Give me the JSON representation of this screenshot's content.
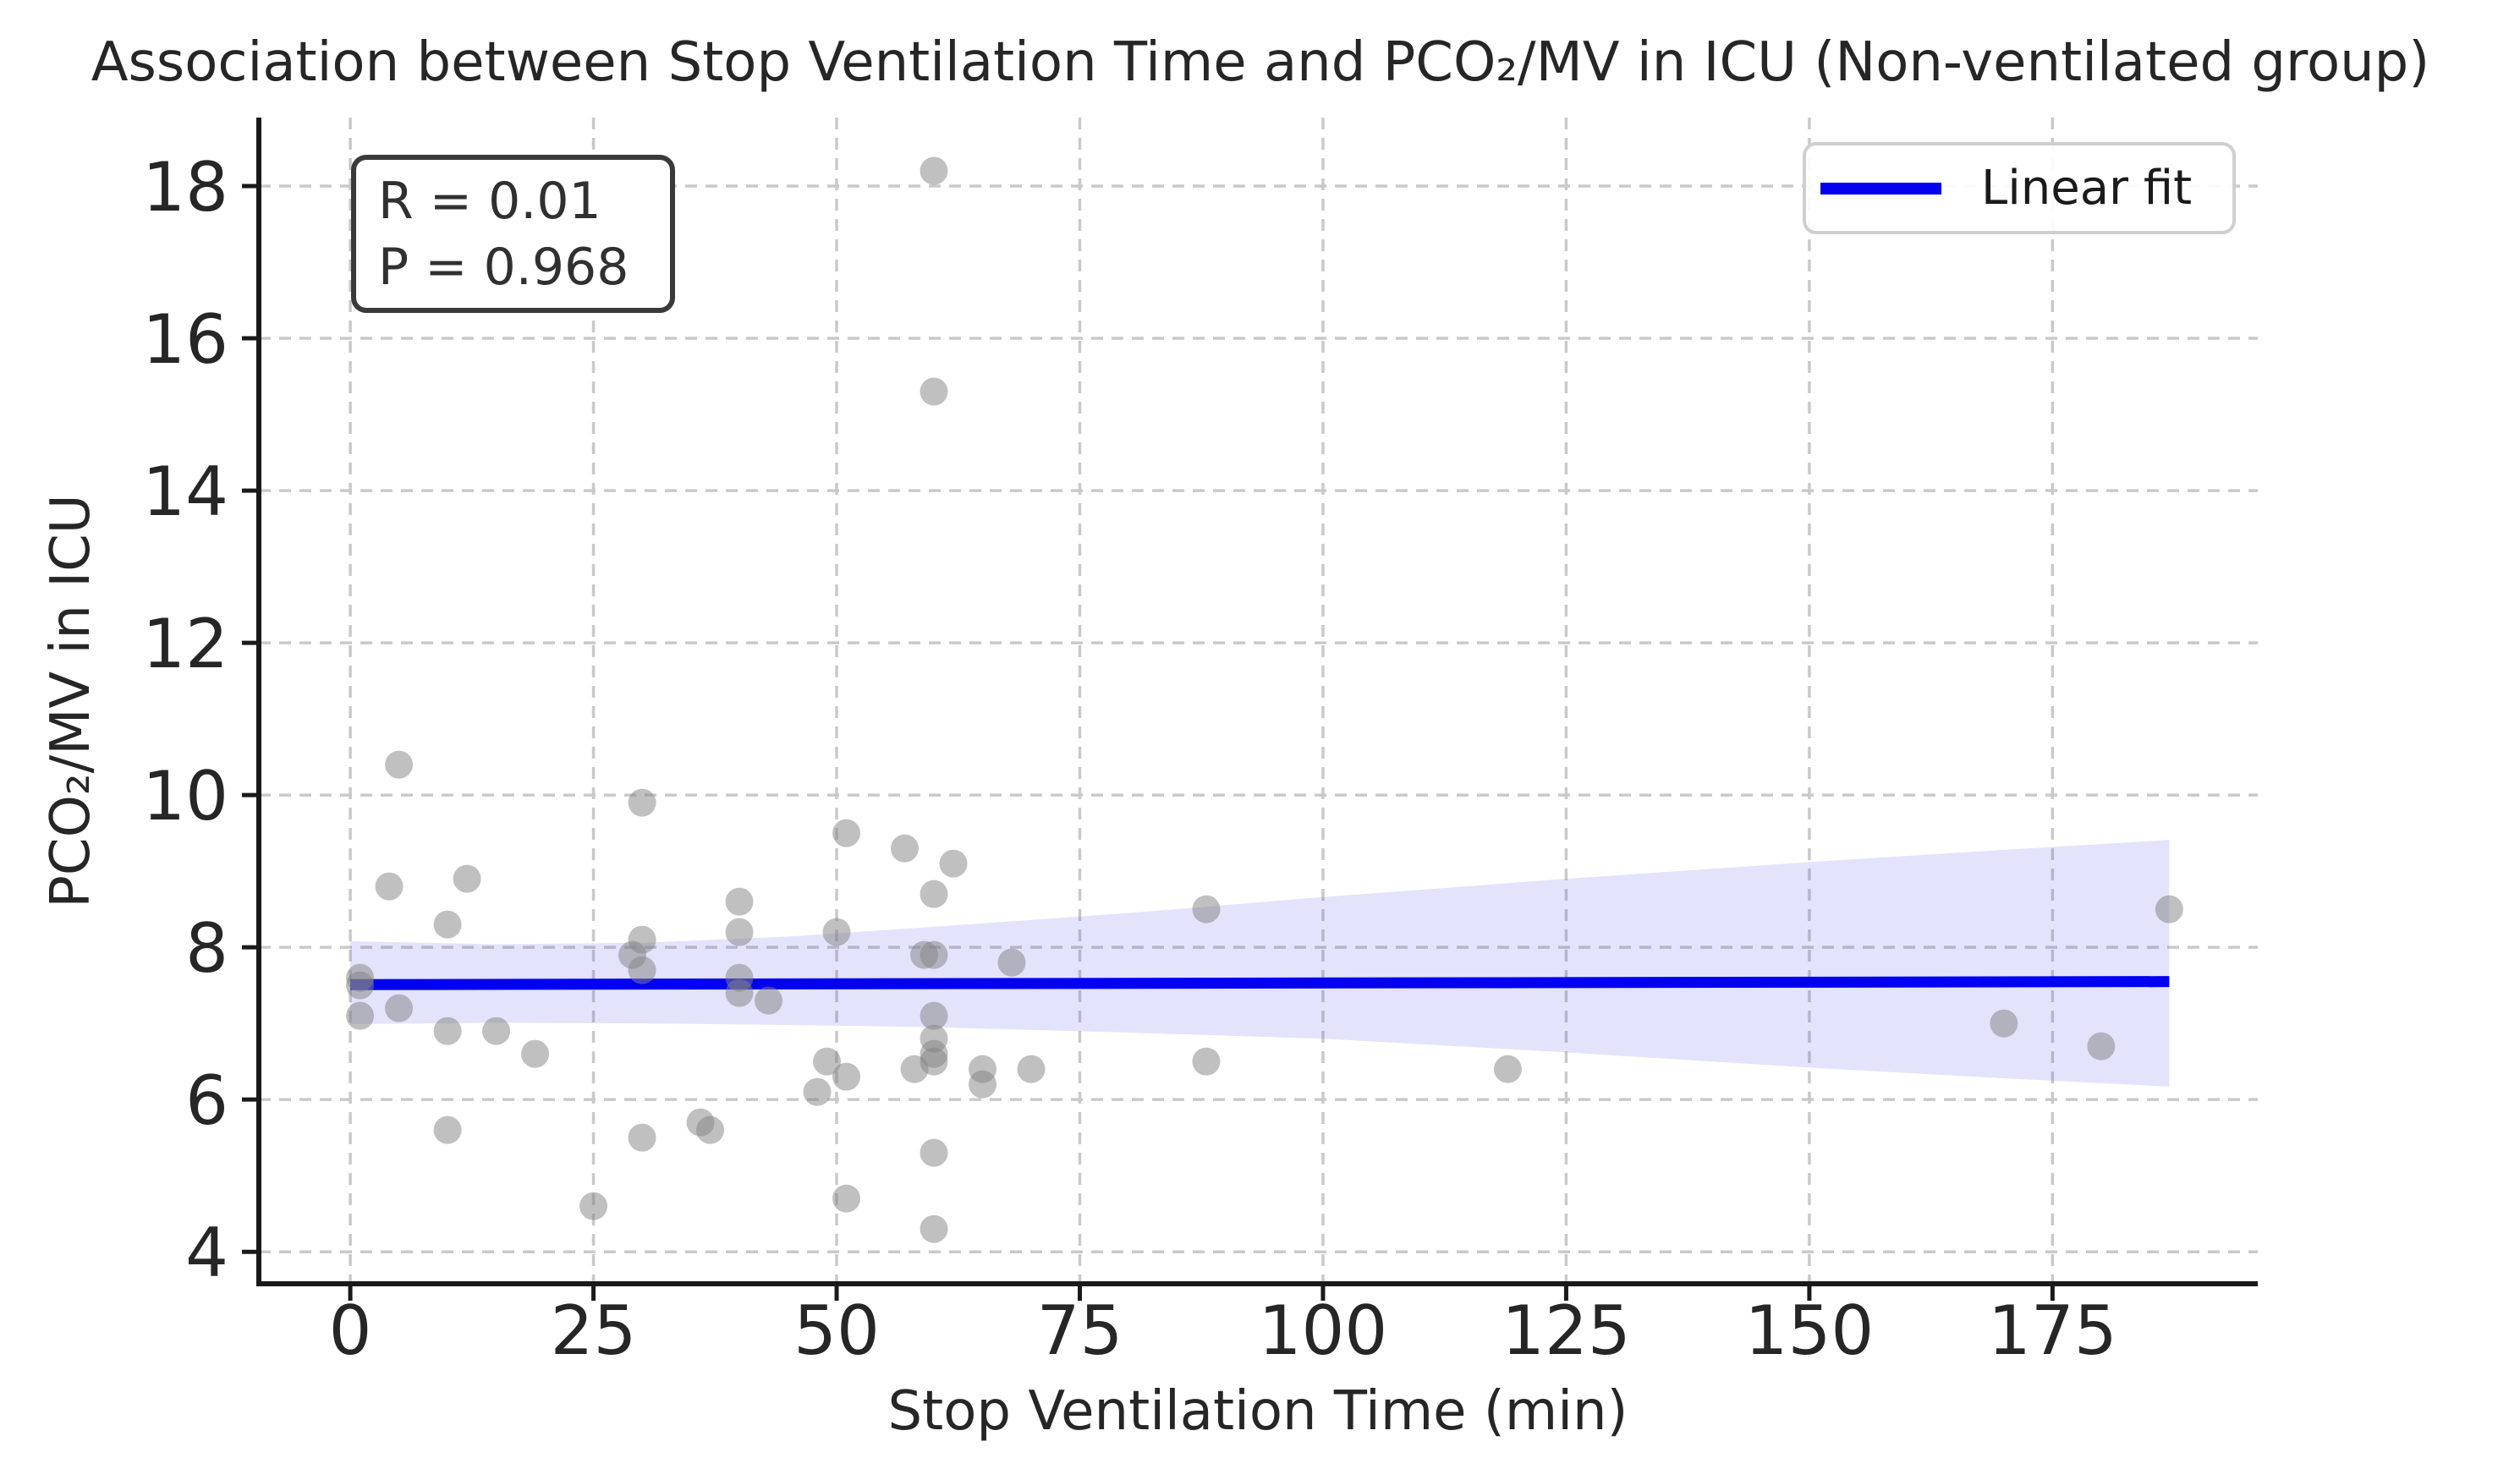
{
  "chart_data": {
    "type": "scatter",
    "title": "Association between Stop Ventilation Time and PCO₂/MV in ICU (Non-ventilated group)",
    "xlabel": "Stop Ventilation Time (min)",
    "ylabel": "PCO₂/MV in ICU",
    "xticks": [
      0,
      25,
      50,
      75,
      100,
      125,
      150,
      175
    ],
    "yticks": [
      4,
      6,
      8,
      10,
      12,
      14,
      16,
      18
    ],
    "xlim": [
      -9.4,
      196.1
    ],
    "ylim": [
      3.58,
      18.9
    ],
    "grid": true,
    "legend_position": "upper right",
    "points": [
      [
        60,
        18.2
      ],
      [
        60,
        15.3
      ],
      [
        5,
        10.4
      ],
      [
        30,
        9.9
      ],
      [
        51,
        9.5
      ],
      [
        57,
        9.3
      ],
      [
        62,
        9.1
      ],
      [
        60,
        8.7
      ],
      [
        12,
        8.9
      ],
      [
        4,
        8.8
      ],
      [
        40,
        8.6
      ],
      [
        88,
        8.5
      ],
      [
        187,
        8.5
      ],
      [
        10,
        8.3
      ],
      [
        40,
        8.2
      ],
      [
        50,
        8.2
      ],
      [
        30,
        8.1
      ],
      [
        29,
        7.9
      ],
      [
        59,
        7.9
      ],
      [
        60,
        7.9
      ],
      [
        68,
        7.8
      ],
      [
        30,
        7.7
      ],
      [
        1,
        7.6
      ],
      [
        40,
        7.6
      ],
      [
        1,
        7.5
      ],
      [
        40,
        7.4
      ],
      [
        43,
        7.3
      ],
      [
        5,
        7.2
      ],
      [
        1,
        7.1
      ],
      [
        60,
        7.1
      ],
      [
        170,
        7.0
      ],
      [
        10,
        6.9
      ],
      [
        15,
        6.9
      ],
      [
        60,
        6.8
      ],
      [
        180,
        6.7
      ],
      [
        19,
        6.6
      ],
      [
        60,
        6.6
      ],
      [
        49,
        6.5
      ],
      [
        60,
        6.5
      ],
      [
        88,
        6.5
      ],
      [
        58,
        6.4
      ],
      [
        65,
        6.4
      ],
      [
        70,
        6.4
      ],
      [
        119,
        6.4
      ],
      [
        51,
        6.3
      ],
      [
        65,
        6.2
      ],
      [
        48,
        6.1
      ],
      [
        36,
        5.7
      ],
      [
        10,
        5.6
      ],
      [
        37,
        5.6
      ],
      [
        30,
        5.5
      ],
      [
        60,
        5.3
      ],
      [
        51,
        4.7
      ],
      [
        25,
        4.6
      ],
      [
        60,
        4.3
      ]
    ],
    "fit_line": {
      "x": [
        0,
        187
      ],
      "y": [
        7.51,
        7.55
      ]
    },
    "ci_band": {
      "x": [
        0,
        15,
        30,
        45,
        60,
        80,
        100,
        125,
        150,
        170,
        187
      ],
      "top": [
        8.08,
        8.04,
        8.06,
        8.14,
        8.27,
        8.45,
        8.66,
        8.9,
        9.12,
        9.28,
        9.41
      ],
      "bottom": [
        6.99,
        7.01,
        7.0,
        6.98,
        6.95,
        6.88,
        6.8,
        6.62,
        6.42,
        6.28,
        6.17
      ]
    },
    "annotation": {
      "r_line": "R = 0.01",
      "p_line": "P = 0.968"
    },
    "legend": {
      "label": "Linear fit"
    },
    "colors": {
      "scatter": "#828282",
      "scatter_opacity": 0.5,
      "fit_line": "#0202f0",
      "band": "#5353e8",
      "band_opacity": 0.16,
      "grid": "#c9c9c9",
      "spine": "#1a1a1a",
      "text": "#262626"
    }
  }
}
